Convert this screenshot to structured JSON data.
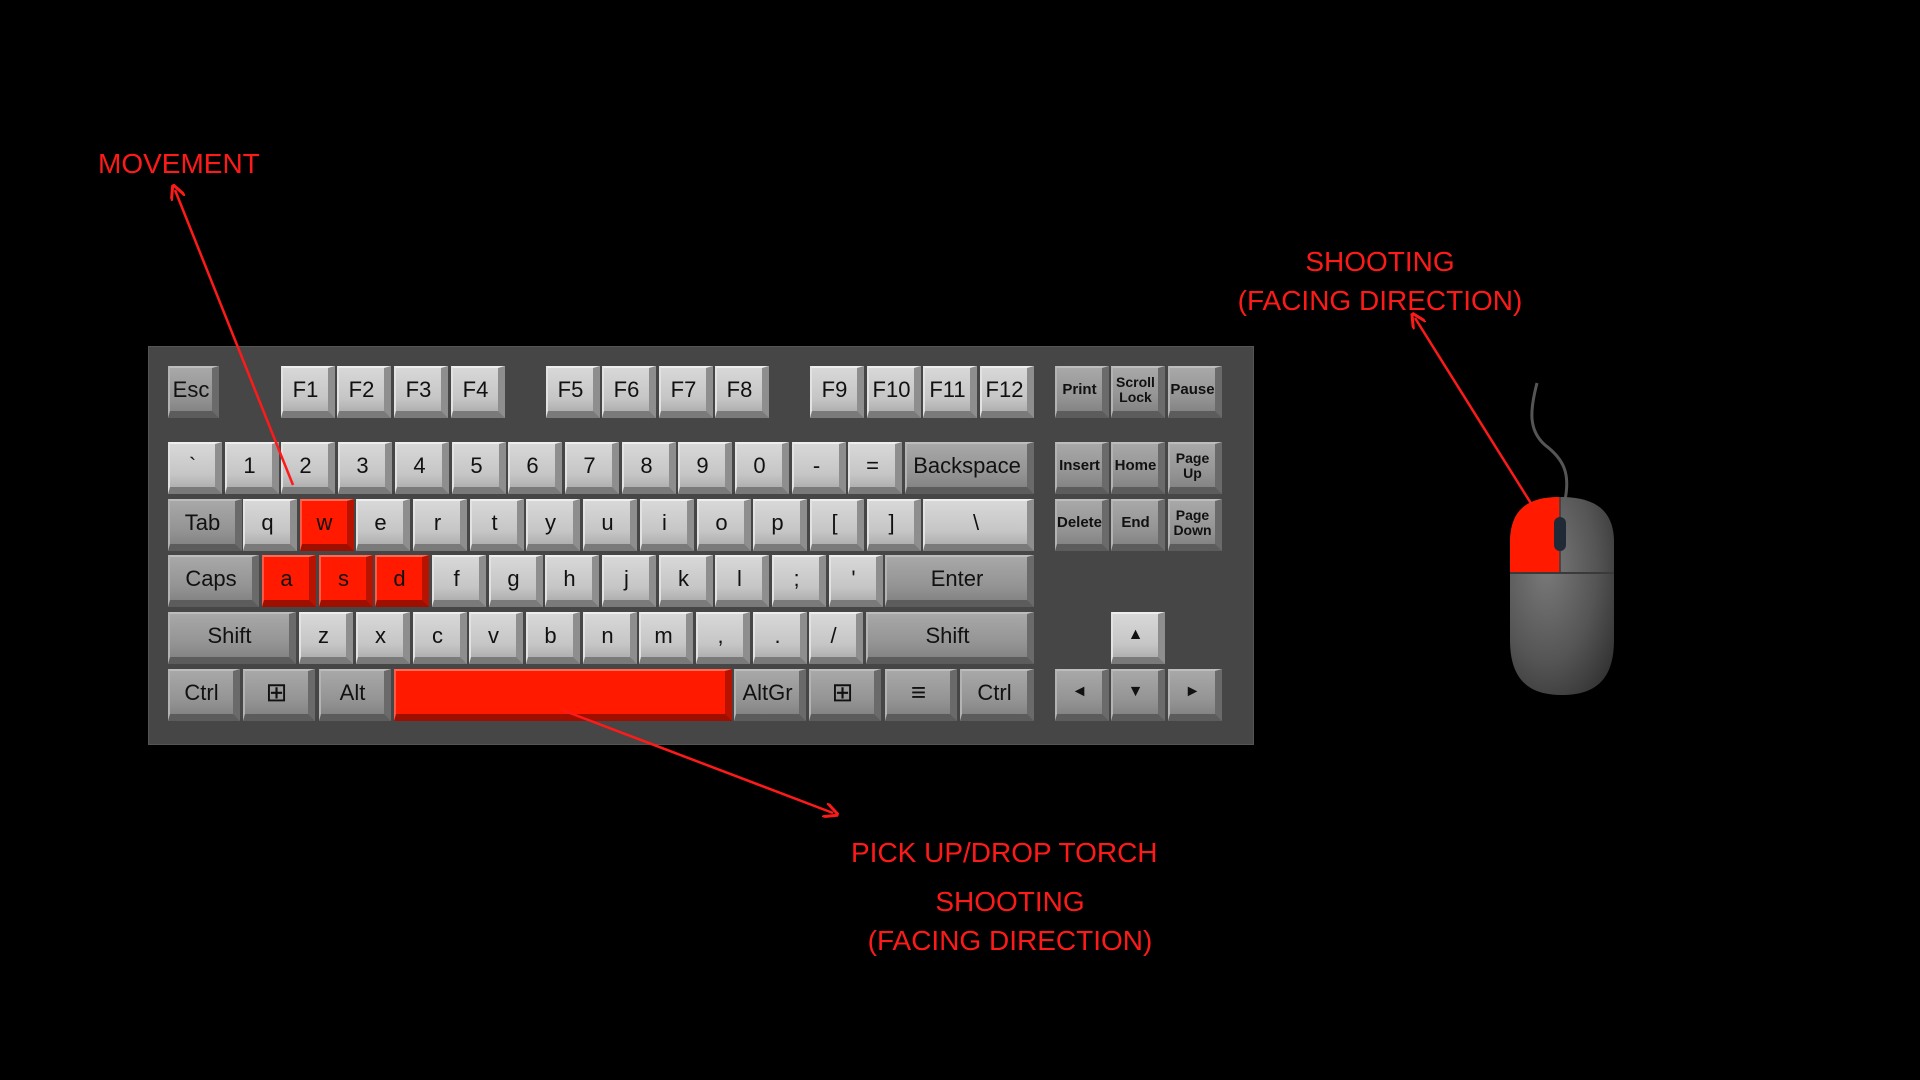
{
  "labels": {
    "movement": "MOVEMENT",
    "shooting_mouse_line1": "SHOOTING",
    "shooting_mouse_line2": "(FACING DIRECTION)",
    "pickup": "PICK UP/DROP TORCH",
    "shooting_space_line1": "SHOOTING",
    "shooting_space_line2": "(FACING DIRECTION)"
  },
  "keys": {
    "esc": "Esc",
    "f1": "F1",
    "f2": "F2",
    "f3": "F3",
    "f4": "F4",
    "f5": "F5",
    "f6": "F6",
    "f7": "F7",
    "f8": "F8",
    "f9": "F9",
    "f10": "F10",
    "f11": "F11",
    "f12": "F12",
    "print": "Print",
    "scroll_lock": "Scroll\nLock",
    "pause": "Pause",
    "backtick": "`",
    "n1": "1",
    "n2": "2",
    "n3": "3",
    "n4": "4",
    "n5": "5",
    "n6": "6",
    "n7": "7",
    "n8": "8",
    "n9": "9",
    "n0": "0",
    "minus": "-",
    "equals": "=",
    "backspace": "Backspace",
    "insert": "Insert",
    "home": "Home",
    "page_up": "Page\nUp",
    "tab": "Tab",
    "q": "q",
    "w": "w",
    "e": "e",
    "r": "r",
    "t": "t",
    "y": "y",
    "u": "u",
    "i": "i",
    "o": "o",
    "p": "p",
    "lbracket": "[",
    "rbracket": "]",
    "backslash": "\\",
    "delete": "Delete",
    "end": "End",
    "page_down": "Page\nDown",
    "caps": "Caps",
    "a": "a",
    "s": "s",
    "d": "d",
    "f": "f",
    "g": "g",
    "h": "h",
    "j": "j",
    "k": "k",
    "l": "l",
    "semicolon": ";",
    "quote": "'",
    "enter": "Enter",
    "lshift": "Shift",
    "z": "z",
    "x": "x",
    "c": "c",
    "v": "v",
    "b": "b",
    "n": "n",
    "m": "m",
    "comma": ",",
    "period": ".",
    "slash": "/",
    "rshift": "Shift",
    "lctrl": "Ctrl",
    "lwin": "⊞",
    "alt": "Alt",
    "space": "",
    "altgr": "AltGr",
    "rwin": "⊞",
    "menu": "≡",
    "rctrl": "Ctrl",
    "arrow_up": "▲",
    "arrow_left": "◄",
    "arrow_down": "▼",
    "arrow_right": "►"
  },
  "highlighted_keys": [
    "w",
    "a",
    "s",
    "d",
    "space"
  ],
  "colors": {
    "background": "#000000",
    "keyboard": "#464646",
    "highlight": "#ff1a00",
    "annotation": "#ff1a1a"
  }
}
